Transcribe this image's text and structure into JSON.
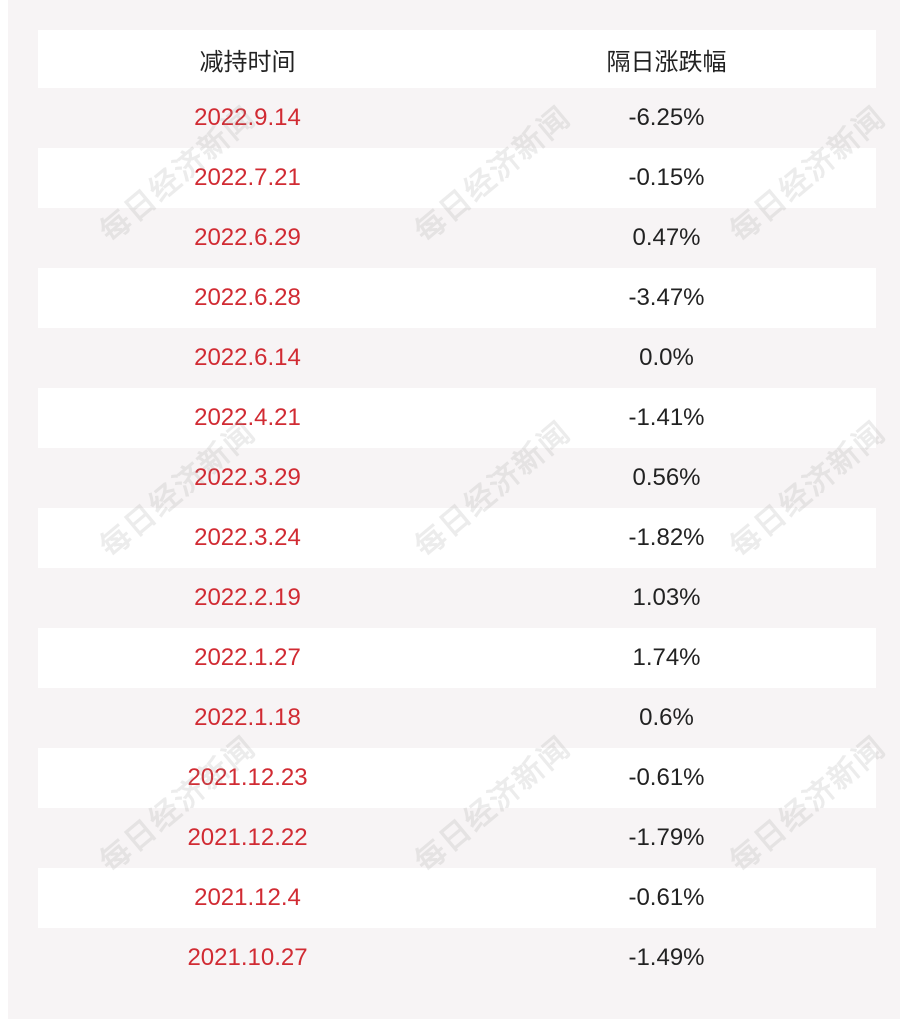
{
  "table": {
    "headers": {
      "date": "减持时间",
      "change": "隔日涨跌幅"
    },
    "rows": [
      {
        "date": "2022.9.14",
        "change": "-6.25%"
      },
      {
        "date": "2022.7.21",
        "change": "-0.15%"
      },
      {
        "date": "2022.6.29",
        "change": "0.47%"
      },
      {
        "date": "2022.6.28",
        "change": "-3.47%"
      },
      {
        "date": "2022.6.14",
        "change": "0.0%"
      },
      {
        "date": "2022.4.21",
        "change": "-1.41%"
      },
      {
        "date": "2022.3.29",
        "change": "0.56%"
      },
      {
        "date": "2022.3.24",
        "change": "-1.82%"
      },
      {
        "date": "2022.2.19",
        "change": "1.03%"
      },
      {
        "date": "2022.1.27",
        "change": "1.74%"
      },
      {
        "date": "2022.1.18",
        "change": "0.6%"
      },
      {
        "date": "2021.12.23",
        "change": "-0.61%"
      },
      {
        "date": "2021.12.22",
        "change": "-1.79%"
      },
      {
        "date": "2021.12.4",
        "change": "-0.61%"
      },
      {
        "date": "2021.10.27",
        "change": "-1.49%"
      }
    ]
  },
  "watermark": {
    "text": "每日经济新闻"
  },
  "colors": {
    "date_text": "#d12b33",
    "value_text": "#222222",
    "row_shaded": "#f7f4f5",
    "row_white": "#ffffff"
  }
}
